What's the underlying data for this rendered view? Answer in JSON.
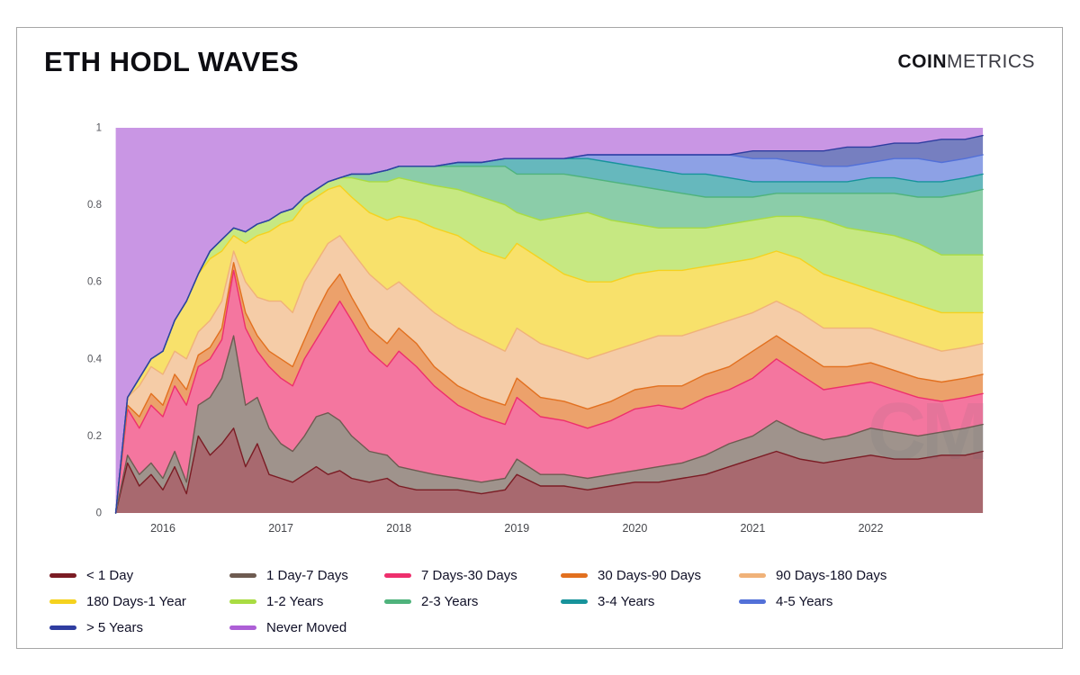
{
  "header": {
    "title": "ETH HODL WAVES",
    "brand_bold": "COIN",
    "brand_light": "METRICS"
  },
  "chart": {
    "watermark": "CM"
  },
  "chart_data": {
    "type": "area",
    "stacked": true,
    "normalized": true,
    "title": "ETH HODL WAVES",
    "xlabel": "",
    "ylabel": "",
    "xlim": [
      2015.55,
      2022.98
    ],
    "ylim": [
      0,
      1
    ],
    "x_ticks": [
      "2016",
      "2017",
      "2018",
      "2019",
      "2020",
      "2021",
      "2022"
    ],
    "x_tick_values": [
      2016,
      2017,
      2018,
      2019,
      2020,
      2021,
      2022
    ],
    "y_ticks": [
      "0",
      "0.2",
      "0.4",
      "0.6",
      "0.8",
      "1"
    ],
    "y_tick_values": [
      0,
      0.2,
      0.4,
      0.6,
      0.8,
      1
    ],
    "grid": false,
    "legend_position": "bottom",
    "x": [
      2015.6,
      2015.7,
      2015.8,
      2015.9,
      2016.0,
      2016.1,
      2016.2,
      2016.3,
      2016.4,
      2016.5,
      2016.6,
      2016.7,
      2016.8,
      2016.9,
      2017.0,
      2017.1,
      2017.2,
      2017.3,
      2017.4,
      2017.5,
      2017.6,
      2017.75,
      2017.9,
      2018.0,
      2018.15,
      2018.3,
      2018.5,
      2018.7,
      2018.9,
      2019.0,
      2019.2,
      2019.4,
      2019.6,
      2019.8,
      2020.0,
      2020.2,
      2020.4,
      2020.6,
      2020.8,
      2021.0,
      2021.2,
      2021.4,
      2021.6,
      2021.8,
      2022.0,
      2022.2,
      2022.4,
      2022.6,
      2022.8,
      2022.95
    ],
    "series": [
      {
        "name": "< 1 Day",
        "color": "#7b1c24",
        "values": [
          0,
          0.13,
          0.07,
          0.1,
          0.06,
          0.12,
          0.05,
          0.2,
          0.15,
          0.18,
          0.22,
          0.12,
          0.18,
          0.1,
          0.09,
          0.08,
          0.1,
          0.12,
          0.1,
          0.11,
          0.09,
          0.08,
          0.09,
          0.07,
          0.06,
          0.06,
          0.06,
          0.05,
          0.06,
          0.1,
          0.07,
          0.07,
          0.06,
          0.07,
          0.08,
          0.08,
          0.09,
          0.1,
          0.12,
          0.14,
          0.16,
          0.14,
          0.13,
          0.14,
          0.15,
          0.14,
          0.14,
          0.15,
          0.15,
          0.16
        ]
      },
      {
        "name": "1 Day-7 Days",
        "color": "#6e5b51",
        "values": [
          0,
          0.02,
          0.03,
          0.03,
          0.03,
          0.04,
          0.03,
          0.08,
          0.15,
          0.17,
          0.24,
          0.16,
          0.12,
          0.12,
          0.09,
          0.08,
          0.1,
          0.13,
          0.16,
          0.13,
          0.11,
          0.08,
          0.06,
          0.05,
          0.05,
          0.04,
          0.03,
          0.03,
          0.03,
          0.04,
          0.03,
          0.03,
          0.03,
          0.03,
          0.03,
          0.04,
          0.04,
          0.05,
          0.06,
          0.06,
          0.08,
          0.07,
          0.06,
          0.06,
          0.07,
          0.07,
          0.06,
          0.06,
          0.07,
          0.07
        ]
      },
      {
        "name": "7 Days-30 Days",
        "color": "#ee2f6d",
        "values": [
          0,
          0.12,
          0.12,
          0.15,
          0.16,
          0.17,
          0.2,
          0.1,
          0.1,
          0.1,
          0.17,
          0.2,
          0.12,
          0.16,
          0.17,
          0.17,
          0.2,
          0.2,
          0.24,
          0.31,
          0.3,
          0.26,
          0.23,
          0.3,
          0.27,
          0.23,
          0.19,
          0.17,
          0.14,
          0.16,
          0.15,
          0.14,
          0.13,
          0.14,
          0.16,
          0.16,
          0.14,
          0.15,
          0.14,
          0.15,
          0.16,
          0.15,
          0.13,
          0.13,
          0.12,
          0.11,
          0.1,
          0.08,
          0.08,
          0.08
        ]
      },
      {
        "name": "30 Days-90 Days",
        "color": "#e2701f",
        "values": [
          0,
          0.01,
          0.03,
          0.03,
          0.03,
          0.03,
          0.04,
          0.03,
          0.03,
          0.03,
          0.02,
          0.04,
          0.04,
          0.04,
          0.05,
          0.05,
          0.05,
          0.07,
          0.08,
          0.07,
          0.06,
          0.06,
          0.06,
          0.06,
          0.06,
          0.05,
          0.05,
          0.05,
          0.05,
          0.05,
          0.05,
          0.05,
          0.05,
          0.05,
          0.05,
          0.05,
          0.06,
          0.06,
          0.06,
          0.07,
          0.06,
          0.06,
          0.06,
          0.05,
          0.05,
          0.05,
          0.05,
          0.05,
          0.05,
          0.05
        ]
      },
      {
        "name": "90 Days-180 Days",
        "color": "#f0b279",
        "values": [
          0,
          0.02,
          0.08,
          0.07,
          0.08,
          0.06,
          0.08,
          0.06,
          0.07,
          0.07,
          0.03,
          0.08,
          0.1,
          0.13,
          0.15,
          0.14,
          0.15,
          0.13,
          0.12,
          0.1,
          0.12,
          0.14,
          0.14,
          0.12,
          0.12,
          0.14,
          0.15,
          0.15,
          0.14,
          0.13,
          0.14,
          0.13,
          0.13,
          0.13,
          0.12,
          0.13,
          0.13,
          0.12,
          0.12,
          0.1,
          0.09,
          0.1,
          0.1,
          0.1,
          0.09,
          0.09,
          0.09,
          0.08,
          0.08,
          0.08
        ]
      },
      {
        "name": "180 Days-1 Year",
        "color": "#f5d21e",
        "values": [
          0,
          0,
          0.02,
          0.02,
          0.06,
          0.08,
          0.15,
          0.15,
          0.16,
          0.13,
          0.04,
          0.1,
          0.16,
          0.18,
          0.2,
          0.24,
          0.2,
          0.17,
          0.14,
          0.13,
          0.14,
          0.16,
          0.18,
          0.17,
          0.2,
          0.22,
          0.24,
          0.23,
          0.24,
          0.22,
          0.22,
          0.2,
          0.2,
          0.18,
          0.18,
          0.17,
          0.17,
          0.16,
          0.15,
          0.14,
          0.13,
          0.14,
          0.14,
          0.12,
          0.1,
          0.1,
          0.1,
          0.1,
          0.09,
          0.08
        ]
      },
      {
        "name": "1-2 Years",
        "color": "#a9dc42",
        "values": [
          0,
          0,
          0,
          0,
          0,
          0,
          0,
          0,
          0.02,
          0.03,
          0.02,
          0.03,
          0.03,
          0.03,
          0.03,
          0.03,
          0.02,
          0.02,
          0.02,
          0.02,
          0.05,
          0.08,
          0.1,
          0.1,
          0.1,
          0.11,
          0.12,
          0.14,
          0.14,
          0.08,
          0.1,
          0.15,
          0.18,
          0.16,
          0.13,
          0.11,
          0.11,
          0.1,
          0.1,
          0.1,
          0.09,
          0.11,
          0.14,
          0.14,
          0.15,
          0.16,
          0.16,
          0.15,
          0.15,
          0.15
        ]
      },
      {
        "name": "2-3 Years",
        "color": "#4fb37c",
        "values": [
          0,
          0,
          0,
          0,
          0,
          0,
          0,
          0,
          0,
          0,
          0,
          0,
          0,
          0,
          0,
          0,
          0,
          0,
          0,
          0,
          0.01,
          0.02,
          0.03,
          0.03,
          0.04,
          0.05,
          0.06,
          0.08,
          0.1,
          0.1,
          0.12,
          0.11,
          0.09,
          0.1,
          0.1,
          0.1,
          0.09,
          0.08,
          0.07,
          0.06,
          0.06,
          0.06,
          0.07,
          0.09,
          0.1,
          0.11,
          0.12,
          0.15,
          0.16,
          0.17
        ]
      },
      {
        "name": "3-4 Years",
        "color": "#17939b",
        "values": [
          0,
          0,
          0,
          0,
          0,
          0,
          0,
          0,
          0,
          0,
          0,
          0,
          0,
          0,
          0,
          0,
          0,
          0,
          0,
          0,
          0,
          0,
          0,
          0,
          0,
          0,
          0.01,
          0.01,
          0.02,
          0.04,
          0.04,
          0.04,
          0.05,
          0.05,
          0.05,
          0.05,
          0.05,
          0.06,
          0.05,
          0.04,
          0.03,
          0.03,
          0.03,
          0.03,
          0.04,
          0.04,
          0.04,
          0.04,
          0.04,
          0.04
        ]
      },
      {
        "name": "4-5 Years",
        "color": "#5270d8",
        "values": [
          0,
          0,
          0,
          0,
          0,
          0,
          0,
          0,
          0,
          0,
          0,
          0,
          0,
          0,
          0,
          0,
          0,
          0,
          0,
          0,
          0,
          0,
          0,
          0,
          0,
          0,
          0,
          0,
          0,
          0,
          0,
          0,
          0.01,
          0.02,
          0.03,
          0.04,
          0.05,
          0.05,
          0.06,
          0.06,
          0.06,
          0.05,
          0.04,
          0.04,
          0.04,
          0.05,
          0.06,
          0.05,
          0.05,
          0.05
        ]
      },
      {
        "name": "> 5 Years",
        "color": "#2f3da0",
        "values": [
          0,
          0,
          0,
          0,
          0,
          0,
          0,
          0,
          0,
          0,
          0,
          0,
          0,
          0,
          0,
          0,
          0,
          0,
          0,
          0,
          0,
          0,
          0,
          0,
          0,
          0,
          0,
          0,
          0,
          0,
          0,
          0,
          0,
          0,
          0,
          0,
          0,
          0,
          0,
          0.02,
          0.02,
          0.03,
          0.04,
          0.05,
          0.04,
          0.04,
          0.04,
          0.06,
          0.05,
          0.05
        ]
      },
      {
        "name": "Never Moved",
        "color": "#ad5fd6",
        "values": [
          1,
          0.7,
          0.65,
          0.6,
          0.58,
          0.5,
          0.45,
          0.38,
          0.32,
          0.29,
          0.26,
          0.27,
          0.25,
          0.24,
          0.22,
          0.21,
          0.18,
          0.16,
          0.14,
          0.13,
          0.12,
          0.12,
          0.11,
          0.1,
          0.1,
          0.1,
          0.09,
          0.09,
          0.08,
          0.08,
          0.08,
          0.08,
          0.07,
          0.07,
          0.07,
          0.07,
          0.07,
          0.07,
          0.07,
          0.06,
          0.06,
          0.06,
          0.06,
          0.05,
          0.05,
          0.04,
          0.04,
          0.03,
          0.03,
          0.02
        ]
      }
    ]
  }
}
